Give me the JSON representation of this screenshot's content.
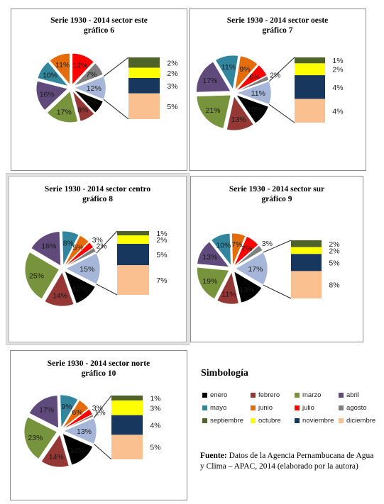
{
  "legend": {
    "title": "Simbología",
    "items": [
      {
        "label": "enero",
        "color": "#000000"
      },
      {
        "label": "febrero",
        "color": "#953735"
      },
      {
        "label": "marzo",
        "color": "#77933c"
      },
      {
        "label": "abril",
        "color": "#604a7b"
      },
      {
        "label": "mayo",
        "color": "#31859c"
      },
      {
        "label": "junio",
        "color": "#e46c0a"
      },
      {
        "label": "julio",
        "color": "#ff0000"
      },
      {
        "label": "agosto",
        "color": "#7f7f7f"
      },
      {
        "label": "septiembre",
        "color": "#4f6228"
      },
      {
        "label": "octubre",
        "color": "#ffff00"
      },
      {
        "label": "noviembre",
        "color": "#17375e"
      },
      {
        "label": "diciembre",
        "color": "#fac090"
      }
    ]
  },
  "source": {
    "label": "Fuente:",
    "text": "Datos de la Agencia Pernambucana de Agua y Clima – APAC, 2014 (elaborado por la autora)"
  },
  "chart_data": [
    {
      "type": "pie",
      "subtype": "bar-of-pie",
      "title": "Serie 1930 - 2014 sector este",
      "subtitle": "gráfico 6",
      "categories": [
        "enero",
        "febrero",
        "marzo",
        "abril",
        "mayo",
        "junio",
        "julio",
        "agosto",
        "septiembre",
        "octubre",
        "noviembre",
        "diciembre"
      ],
      "values": [
        7,
        8,
        17,
        16,
        10,
        11,
        12,
        7,
        2,
        2,
        3,
        5
      ],
      "labels": [
        "7%",
        "8%",
        "17%",
        "16%",
        "10%",
        "11%",
        "12%",
        "7%",
        "2%",
        "2%",
        "3%",
        "5%"
      ],
      "other_label": "12%"
    },
    {
      "type": "pie",
      "subtype": "bar-of-pie",
      "title": "Serie 1930 - 2014 sector oeste",
      "subtitle": "gráfico 7",
      "categories": [
        "enero",
        "febrero",
        "marzo",
        "abril",
        "mayo",
        "junio",
        "julio",
        "agosto",
        "septiembre",
        "octubre",
        "noviembre",
        "diciembre"
      ],
      "values": [
        10,
        13,
        21,
        17,
        11,
        9,
        6,
        2,
        1,
        2,
        4,
        4
      ],
      "labels": [
        "10%",
        "13%",
        "21%",
        "17%",
        "11%",
        "9%",
        "6%",
        "2%",
        "1%",
        "2%",
        "4%",
        "4%"
      ],
      "other_label": "11%"
    },
    {
      "type": "pie",
      "subtype": "bar-of-pie",
      "title": "Serie 1930 - 2014 sector centro",
      "subtitle": "gráfico 8",
      "categories": [
        "enero",
        "febrero",
        "marzo",
        "abril",
        "mayo",
        "junio",
        "julio",
        "agosto",
        "septiembre",
        "octubre",
        "noviembre",
        "diciembre"
      ],
      "values": [
        12,
        14,
        25,
        16,
        8,
        5,
        3,
        2,
        1,
        2,
        5,
        7
      ],
      "labels": [
        "12%",
        "14%",
        "25%",
        "16%",
        "8%",
        "5%",
        "3%",
        "2%",
        "1%",
        "2%",
        "5%",
        "7%"
      ],
      "other_label": "15%"
    },
    {
      "type": "pie",
      "subtype": "bar-of-pie",
      "title": "Serie 1930 - 2014 sector sur",
      "subtitle": "gráfico 9",
      "categories": [
        "enero",
        "febrero",
        "marzo",
        "abril",
        "mayo",
        "junio",
        "julio",
        "agosto",
        "septiembre",
        "octubre",
        "noviembre",
        "diciembre"
      ],
      "values": [
        13,
        11,
        19,
        13,
        10,
        7,
        7,
        3,
        2,
        2,
        5,
        8
      ],
      "labels": [
        "13%",
        "11%",
        "19%",
        "13%",
        "10%",
        "7%",
        "7%",
        "3%",
        "2%",
        "2%",
        "5%",
        "8%"
      ],
      "other_label": "17%"
    },
    {
      "type": "pie",
      "subtype": "bar-of-pie",
      "title": "Serie 1930 - 2014 sector norte",
      "subtitle": "gráfico 10",
      "categories": [
        "enero",
        "febrero",
        "marzo",
        "abril",
        "mayo",
        "junio",
        "julio",
        "agosto",
        "septiembre",
        "octubre",
        "noviembre",
        "diciembre"
      ],
      "values": [
        14,
        14,
        23,
        17,
        9,
        6,
        3,
        1,
        1,
        3,
        4,
        5
      ],
      "labels": [
        "14%",
        "14%",
        "23%",
        "17%",
        "9%",
        "6%",
        "3%",
        "1%",
        "1%",
        "3%",
        "4%",
        "5%"
      ],
      "other_label": "13%"
    }
  ]
}
